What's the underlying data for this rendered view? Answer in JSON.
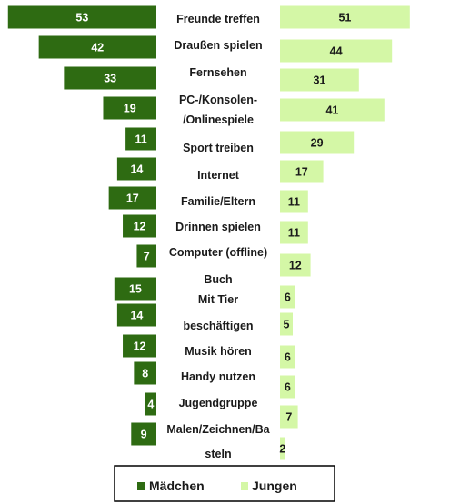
{
  "chart_data": {
    "type": "bar",
    "orientation": "horizontal-diverging",
    "categories": [
      "Freunde treffen",
      "Draußen spielen",
      "Fernsehen",
      "PC-/Konsolen-/Onlinespiele",
      "Sport treiben",
      "Internet",
      "Familie/Eltern",
      "Drinnen spielen",
      "Computer (offline)",
      "Buch",
      "Mit Tier beschäftigen",
      "Musik hören",
      "Handy nutzen",
      "Jugendgruppe",
      "Malen/Zeichnen/Basteln"
    ],
    "category_lines": [
      [
        "Freunde treffen"
      ],
      [
        "Draußen spielen"
      ],
      [
        "Fernsehen"
      ],
      [
        "PC-/Konsolen-",
        "/Onlinespiele"
      ],
      [
        "Sport treiben"
      ],
      [
        "Internet"
      ],
      [
        "Familie/Eltern"
      ],
      [
        "Drinnen spielen"
      ],
      [
        "Computer (offline)"
      ],
      [
        "Buch"
      ],
      [
        "Mit Tier"
      ],
      [
        "beschäftigen"
      ],
      [
        "Musik hören"
      ],
      [
        "Handy nutzen"
      ],
      [
        "Jugendgruppe"
      ],
      [
        "Malen/Zeichnen/Ba"
      ],
      [
        "steln"
      ]
    ],
    "series": [
      {
        "name": "Mädchen",
        "color": "#2e6b12",
        "values": [
          53,
          42,
          33,
          19,
          11,
          14,
          17,
          12,
          7,
          15,
          14,
          12,
          8,
          4,
          9
        ]
      },
      {
        "name": "Jungen",
        "color": "#d4f7a6",
        "values": [
          51,
          44,
          31,
          41,
          29,
          17,
          11,
          11,
          12,
          6,
          5,
          6,
          6,
          7,
          2
        ]
      }
    ],
    "legend_position": "bottom",
    "grid": false
  }
}
